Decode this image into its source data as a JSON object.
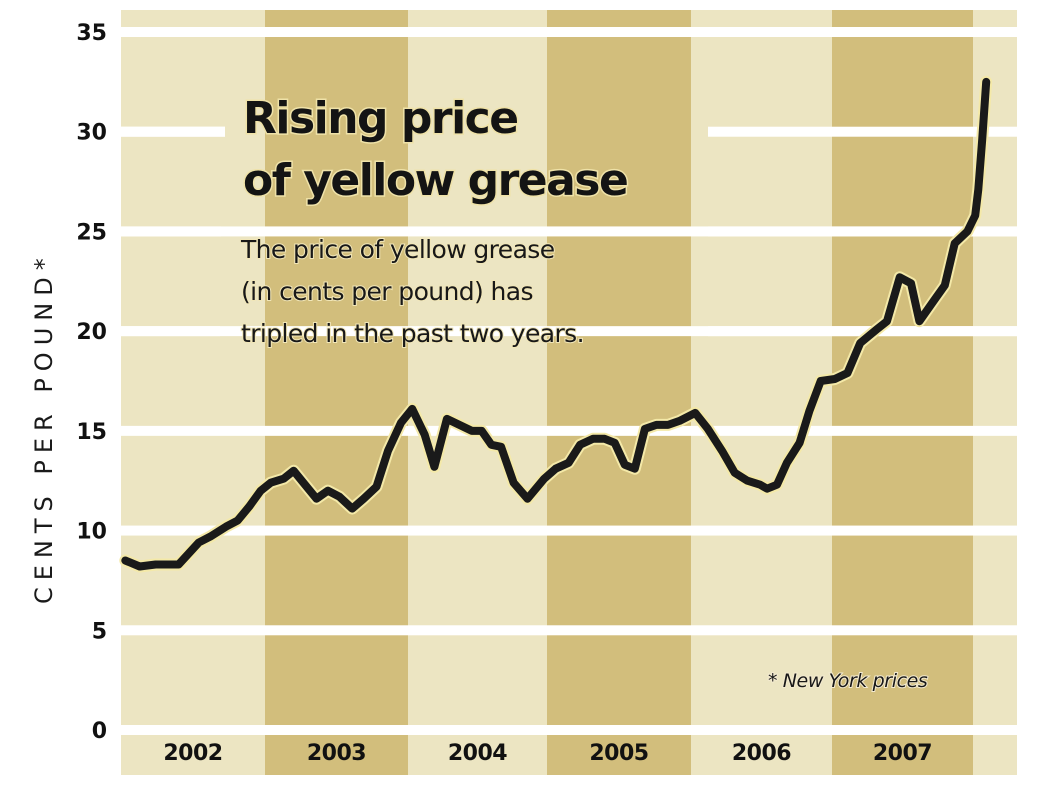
{
  "chart_data": {
    "type": "line",
    "title_lines": [
      "Rising price",
      "of yellow grease"
    ],
    "subtitle_lines": [
      "The price of yellow grease",
      "(in cents per pound) has",
      "tripled in the past two years."
    ],
    "ylabel": "CENTS PER POUND*",
    "xlabel": "",
    "footnote": "* New York prices",
    "ylim": [
      0,
      35
    ],
    "yticks": [
      0,
      5,
      10,
      15,
      20,
      25,
      30,
      35
    ],
    "ytick_labels": [
      "0",
      "5",
      "10",
      "15",
      "20",
      "25",
      "30",
      "35"
    ],
    "xlim": [
      2002.0,
      2008.3
    ],
    "categories": [
      "2002",
      "2003",
      "2004",
      "2005",
      "2006",
      "2007"
    ],
    "grid": true,
    "legend": "none",
    "colors": {
      "band_light": "#ece5c2",
      "band_dark": "#d2be7c",
      "gridline": "#ffffff",
      "line": "#1a1a1a",
      "line_halo": "#f4e9a8"
    },
    "series": [
      {
        "name": "Yellow grease price (New York)",
        "x": [
          2002.03,
          2002.13,
          2002.24,
          2002.4,
          2002.54,
          2002.62,
          2002.73,
          2002.81,
          2002.89,
          2002.97,
          2003.04,
          2003.13,
          2003.2,
          2003.28,
          2003.36,
          2003.44,
          2003.52,
          2003.61,
          2003.69,
          2003.78,
          2003.86,
          2003.95,
          2004.03,
          2004.12,
          2004.19,
          2004.28,
          2004.37,
          2004.46,
          2004.53,
          2004.6,
          2004.67,
          2004.76,
          2004.86,
          2004.98,
          2005.06,
          2005.15,
          2005.23,
          2005.32,
          2005.4,
          2005.47,
          2005.54,
          2005.61,
          2005.68,
          2005.76,
          2005.84,
          2005.92,
          2006.03,
          2006.12,
          2006.22,
          2006.31,
          2006.4,
          2006.49,
          2006.54,
          2006.61,
          2006.68,
          2006.77,
          2006.84,
          2006.92,
          2007.02,
          2007.11,
          2007.2,
          2007.32,
          2007.39,
          2007.48,
          2007.56,
          2007.62,
          2007.73,
          2007.8,
          2007.87,
          2007.96,
          2008.05,
          2008.12,
          2008.21,
          2008.3
        ],
        "values": [
          8.5,
          8.2,
          8.3,
          8.3,
          9.4,
          9.7,
          10.2,
          10.5,
          11.2,
          12.0,
          12.4,
          12.6,
          13.0,
          12.3,
          11.6,
          12.0,
          11.7,
          11.1,
          11.6,
          12.2,
          14.0,
          15.4,
          16.1,
          14.8,
          13.2,
          15.6,
          15.3,
          15.0,
          15.0,
          14.3,
          14.2,
          12.4,
          11.6,
          12.6,
          13.1,
          13.4,
          14.3,
          14.6,
          14.6,
          14.4,
          13.3,
          13.1,
          15.1,
          15.3,
          15.3,
          15.5,
          15.9,
          15.1,
          14.0,
          12.9,
          12.5,
          12.3,
          12.1,
          12.3,
          13.4,
          14.4,
          16.0,
          17.5,
          17.6,
          17.9,
          19.4,
          20.1,
          20.5,
          22.7,
          22.4,
          20.5,
          21.6,
          22.3,
          24.4,
          25.0,
          25.8,
          27.1,
          29.6,
          32.5
        ]
      }
    ]
  }
}
